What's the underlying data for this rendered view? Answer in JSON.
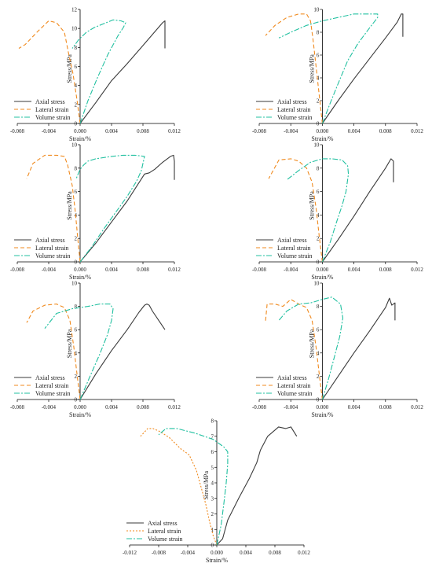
{
  "figure": {
    "styles": {
      "axial": {
        "color": "#3a3a3a",
        "dash": ""
      },
      "lateral_dashed": {
        "color": "#f08a1e",
        "dash": "5,3"
      },
      "lateral_dotted": {
        "color": "#f08a1e",
        "dash": "2,2"
      },
      "volume": {
        "color": "#21c0a0",
        "dash": "7,2,2,2"
      }
    }
  },
  "chart_data": [
    {
      "type": "line",
      "xlabel": "Strain/%",
      "ylabel": "Stress/MPa",
      "xlim": [
        -0.008,
        0.012
      ],
      "ylim": [
        0,
        12
      ],
      "xticks": [
        -0.008,
        -0.004,
        0.0,
        0.004,
        0.008,
        0.012
      ],
      "xtick_labels": [
        "-0.008",
        "-0.004",
        "0.000",
        "0.004",
        "0.008",
        "0.012"
      ],
      "yticks": [
        0,
        2,
        4,
        6,
        8,
        10,
        12
      ],
      "ytick_labels": [
        "0",
        "2",
        "4",
        "6",
        "8",
        "10",
        "12"
      ],
      "legend_position": "bottom-left",
      "series": [
        {
          "name": "Axial stress",
          "style": "axial",
          "x": [
            0,
            0.002,
            0.004,
            0.006,
            0.008,
            0.0105,
            0.0108,
            0.0108
          ],
          "y": [
            0,
            2.2,
            4.5,
            6.3,
            8.2,
            10.6,
            10.8,
            7.9
          ]
        },
        {
          "name": "Lateral strain",
          "style": "lateral_dashed",
          "x": [
            0,
            -0.0004,
            -0.0009,
            -0.0015,
            -0.002,
            -0.003,
            -0.004,
            -0.0055,
            -0.007,
            -0.0078
          ],
          "y": [
            0,
            2.5,
            5.2,
            7.5,
            9.6,
            10.6,
            10.8,
            9.6,
            8.3,
            7.9
          ]
        },
        {
          "name": "Volume strain",
          "style": "volume",
          "x": [
            0,
            0.001,
            0.0022,
            0.0035,
            0.0048,
            0.0055,
            0.0058,
            0.0052,
            0.0042,
            0.003,
            0.0018,
            0.0008,
            -0.0002,
            -0.001
          ],
          "y": [
            0,
            2.4,
            4.8,
            7.2,
            9.2,
            10.1,
            10.6,
            10.8,
            10.9,
            10.5,
            10.1,
            9.6,
            8.8,
            7.9
          ]
        }
      ]
    },
    {
      "type": "line",
      "xlabel": "Strain/%",
      "ylabel": "Stress/MPa",
      "xlim": [
        -0.008,
        0.012
      ],
      "ylim": [
        0,
        10
      ],
      "xticks": [
        -0.008,
        -0.004,
        0.0,
        0.004,
        0.008,
        0.012
      ],
      "xtick_labels": [
        "-0.008",
        "-0.004",
        "0.000",
        "0.004",
        "0.008",
        "0.012"
      ],
      "yticks": [
        0,
        2,
        4,
        6,
        8,
        10
      ],
      "ytick_labels": [
        "0",
        "2",
        "4",
        "6",
        "8",
        "10"
      ],
      "legend_position": "bottom-left",
      "series": [
        {
          "name": "Axial stress",
          "style": "axial",
          "x": [
            0,
            0.002,
            0.004,
            0.006,
            0.008,
            0.0095,
            0.01,
            0.0102,
            0.0102
          ],
          "y": [
            0,
            2.0,
            3.9,
            5.7,
            7.5,
            8.9,
            9.6,
            9.6,
            7.6
          ]
        },
        {
          "name": "Lateral strain",
          "style": "lateral_dashed",
          "x": [
            0,
            -0.0004,
            -0.0008,
            -0.0012,
            -0.0015,
            -0.002,
            -0.003,
            -0.0045,
            -0.006,
            -0.0072
          ],
          "y": [
            0,
            2.5,
            5.0,
            7.5,
            9.0,
            9.6,
            9.6,
            9.3,
            8.6,
            7.7
          ]
        },
        {
          "name": "Volume strain",
          "style": "volume",
          "x": [
            0,
            0.001,
            0.002,
            0.0032,
            0.0045,
            0.006,
            0.007,
            0.007,
            0.0055,
            0.004,
            0.002,
            0,
            -0.002,
            -0.004,
            -0.0055
          ],
          "y": [
            0,
            1.8,
            3.5,
            5.5,
            7.0,
            8.4,
            9.3,
            9.6,
            9.6,
            9.6,
            9.3,
            9.0,
            8.6,
            8.0,
            7.5
          ]
        }
      ]
    },
    {
      "type": "line",
      "xlabel": "Strain/%",
      "ylabel": "Stress/MPa",
      "xlim": [
        -0.008,
        0.012
      ],
      "ylim": [
        0,
        10
      ],
      "xticks": [
        -0.008,
        -0.004,
        0.0,
        0.004,
        0.008,
        0.012
      ],
      "xtick_labels": [
        "-0.008",
        "-0.004",
        "0.000",
        "0.004",
        "0.008",
        "0.012"
      ],
      "yticks": [
        0,
        2,
        4,
        6,
        8,
        10
      ],
      "ytick_labels": [
        "0",
        "2",
        "4",
        "6",
        "8",
        "10"
      ],
      "legend_position": "bottom-left",
      "series": [
        {
          "name": "Axial stress",
          "style": "axial",
          "x": [
            0,
            0.002,
            0.004,
            0.006,
            0.0082,
            0.0088,
            0.0095,
            0.0105,
            0.0115,
            0.0119,
            0.012,
            0.012
          ],
          "y": [
            0,
            1.6,
            3.4,
            5.2,
            7.5,
            7.6,
            7.9,
            8.5,
            9.0,
            9.1,
            8.6,
            7.0
          ]
        },
        {
          "name": "Lateral strain",
          "style": "lateral_dashed",
          "x": [
            0,
            -0.0003,
            -0.0006,
            -0.001,
            -0.0016,
            -0.002,
            -0.003,
            -0.0045,
            -0.006,
            -0.0068
          ],
          "y": [
            0,
            2.0,
            4.2,
            6.5,
            8.3,
            9.0,
            9.1,
            9.1,
            8.4,
            7.1
          ]
        },
        {
          "name": "Volume strain",
          "style": "volume",
          "x": [
            0,
            0.0015,
            0.003,
            0.0045,
            0.006,
            0.0072,
            0.0078,
            0.0082,
            0.007,
            0.0055,
            0.004,
            0.002,
            0.001,
            0.0005,
            0,
            -0.0005
          ],
          "y": [
            0,
            1.3,
            2.8,
            4.2,
            5.6,
            6.9,
            7.8,
            9.0,
            9.1,
            9.1,
            9.0,
            8.8,
            8.6,
            8.3,
            7.9,
            7.1
          ]
        }
      ]
    },
    {
      "type": "line",
      "xlabel": "Strain/%",
      "ylabel": "Stress/MPa",
      "xlim": [
        -0.008,
        0.012
      ],
      "ylim": [
        0,
        10
      ],
      "xticks": [
        -0.008,
        -0.004,
        0.0,
        0.004,
        0.008,
        0.012
      ],
      "xtick_labels": [
        "-0.008",
        "-0.004",
        "0.000",
        "0.004",
        "0.008",
        "0.012"
      ],
      "yticks": [
        0,
        2,
        4,
        6,
        8,
        10
      ],
      "ytick_labels": [
        "0",
        "2",
        "4",
        "6",
        "8",
        "10"
      ],
      "legend_position": "bottom-left",
      "series": [
        {
          "name": "Axial stress",
          "style": "axial",
          "x": [
            0,
            0.002,
            0.004,
            0.006,
            0.008,
            0.0087,
            0.009,
            0.009
          ],
          "y": [
            0,
            1.9,
            3.9,
            6.0,
            8.0,
            8.8,
            8.6,
            6.8
          ]
        },
        {
          "name": "Lateral strain",
          "style": "lateral_dashed",
          "x": [
            0,
            -0.0004,
            -0.0008,
            -0.0013,
            -0.002,
            -0.003,
            -0.004,
            -0.0055,
            -0.0068
          ],
          "y": [
            0,
            2.2,
            4.6,
            6.8,
            8.0,
            8.6,
            8.8,
            8.7,
            7.1
          ]
        },
        {
          "name": "Volume strain",
          "style": "volume",
          "x": [
            0,
            0.001,
            0.0018,
            0.0025,
            0.003,
            0.0033,
            0.0032,
            0.0025,
            0.0012,
            0,
            -0.0015,
            -0.003,
            -0.0045
          ],
          "y": [
            0,
            1.7,
            3.4,
            4.8,
            6.0,
            7.5,
            8.2,
            8.7,
            8.8,
            8.8,
            8.5,
            7.8,
            7.0
          ]
        }
      ]
    },
    {
      "type": "line",
      "xlabel": "Strain/%",
      "ylabel": "Stress/MPa",
      "xlim": [
        -0.008,
        0.012
      ],
      "ylim": [
        0,
        10
      ],
      "xticks": [
        -0.008,
        -0.004,
        0.0,
        0.004,
        0.008,
        0.012
      ],
      "xtick_labels": [
        "-0.008",
        "-0.004",
        "0.000",
        "0.004",
        "0.008",
        "0.012"
      ],
      "yticks": [
        0,
        2,
        4,
        6,
        8,
        10
      ],
      "ytick_labels": [
        "0",
        "2",
        "4",
        "6",
        "8",
        "10"
      ],
      "legend_position": "bottom-left",
      "series": [
        {
          "name": "Axial stress",
          "style": "axial",
          "x": [
            0,
            0.002,
            0.004,
            0.006,
            0.0075,
            0.0082,
            0.0085,
            0.0088,
            0.0092,
            0.0102,
            0.0108
          ],
          "y": [
            0,
            2.2,
            4.2,
            6.0,
            7.5,
            8.1,
            8.2,
            8.1,
            7.6,
            6.6,
            6.0
          ]
        },
        {
          "name": "Lateral strain",
          "style": "lateral_dashed",
          "x": [
            0,
            -0.0004,
            -0.0008,
            -0.0013,
            -0.002,
            -0.003,
            -0.0045,
            -0.006,
            -0.0068
          ],
          "y": [
            0,
            2.2,
            4.5,
            6.8,
            7.9,
            8.2,
            8.1,
            7.6,
            6.6
          ]
        },
        {
          "name": "Volume strain",
          "style": "volume",
          "x": [
            0,
            0.0012,
            0.0025,
            0.0035,
            0.004,
            0.0042,
            0.0038,
            0.0025,
            0.001,
            -0.001,
            -0.003,
            -0.0045
          ],
          "y": [
            0,
            1.9,
            3.9,
            5.6,
            6.8,
            7.8,
            8.2,
            8.2,
            8.0,
            7.8,
            7.4,
            6.1
          ]
        }
      ]
    },
    {
      "type": "line",
      "xlabel": "Strain/%",
      "ylabel": "Stress/MPa",
      "xlim": [
        -0.008,
        0.012
      ],
      "ylim": [
        0,
        10
      ],
      "xticks": [
        -0.008,
        -0.004,
        0.0,
        0.004,
        0.008,
        0.012
      ],
      "xtick_labels": [
        "-0.008",
        "-0.004",
        "0.000",
        "0.004",
        "0.008",
        "0.012"
      ],
      "yticks": [
        0,
        2,
        4,
        6,
        8,
        10
      ],
      "ytick_labels": [
        "0",
        "2",
        "4",
        "6",
        "8",
        "10"
      ],
      "legend_position": "bottom-left",
      "series": [
        {
          "name": "Axial stress",
          "style": "axial",
          "x": [
            0,
            0.002,
            0.004,
            0.006,
            0.008,
            0.0085,
            0.0088,
            0.009,
            0.0092,
            0.0092
          ],
          "y": [
            0,
            2.0,
            4.0,
            5.9,
            7.9,
            8.7,
            8.1,
            8.2,
            8.3,
            6.8
          ]
        },
        {
          "name": "Lateral strain",
          "style": "lateral_dashed",
          "x": [
            0,
            -0.0004,
            -0.0008,
            -0.0013,
            -0.002,
            -0.003,
            -0.004,
            -0.005,
            -0.006,
            -0.007,
            -0.0072
          ],
          "y": [
            0,
            2.2,
            4.5,
            6.8,
            7.9,
            8.2,
            8.6,
            8.0,
            8.2,
            8.2,
            6.7
          ]
        },
        {
          "name": "Volume strain",
          "style": "volume",
          "x": [
            0,
            0.0008,
            0.0015,
            0.0022,
            0.0026,
            0.0023,
            0.0012,
            0,
            -0.0015,
            -0.003,
            -0.0045,
            -0.0055
          ],
          "y": [
            0,
            1.8,
            3.6,
            5.4,
            7.0,
            8.2,
            8.8,
            8.6,
            8.3,
            8.2,
            7.6,
            6.8
          ]
        }
      ]
    },
    {
      "type": "line",
      "xlabel": "Strain/%",
      "ylabel": "Stress/MPa",
      "xlim": [
        -0.012,
        0.012
      ],
      "ylim": [
        0,
        8
      ],
      "xticks": [
        -0.012,
        -0.008,
        -0.004,
        0.0,
        0.004,
        0.008,
        0.012
      ],
      "xtick_labels": [
        "-0.012",
        "-0.008",
        "-0.004",
        "0.000",
        "0.004",
        "0.008",
        "0.012"
      ],
      "yticks": [
        0,
        1,
        2,
        3,
        4,
        5,
        6,
        7,
        8
      ],
      "ytick_labels": [
        "0",
        "1",
        "2",
        "3",
        "4",
        "5",
        "6",
        "7",
        "8"
      ],
      "legend_position": "bottom-left",
      "series": [
        {
          "name": "Axial stress",
          "style": "axial",
          "x": [
            0,
            0.0008,
            0.0015,
            0.003,
            0.0045,
            0.0055,
            0.006,
            0.007,
            0.008,
            0.0085,
            0.0095,
            0.0102,
            0.011
          ],
          "y": [
            0,
            0.4,
            1.6,
            3.0,
            4.3,
            5.3,
            6.1,
            7.0,
            7.4,
            7.6,
            7.5,
            7.6,
            7.0
          ]
        },
        {
          "name": "Lateral strain",
          "style": "lateral_dotted",
          "x": [
            0,
            -0.0005,
            -0.001,
            -0.0015,
            -0.0022,
            -0.0028,
            -0.0038,
            -0.005,
            -0.0065,
            -0.0078,
            -0.0088,
            -0.0095,
            -0.0105
          ],
          "y": [
            0,
            0.6,
            1.5,
            2.6,
            3.8,
            4.8,
            5.8,
            6.2,
            6.9,
            7.3,
            7.5,
            7.5,
            7.0
          ]
        },
        {
          "name": "Volume strain",
          "style": "volume",
          "x": [
            0,
            0.0006,
            0.001,
            0.0013,
            0.0015,
            0.0015,
            0.001,
            -0.0005,
            -0.003,
            -0.0055,
            -0.007,
            -0.008
          ],
          "y": [
            0,
            1.3,
            2.8,
            4.0,
            5.2,
            6.0,
            6.3,
            6.8,
            7.2,
            7.5,
            7.5,
            7.1
          ]
        }
      ]
    }
  ]
}
